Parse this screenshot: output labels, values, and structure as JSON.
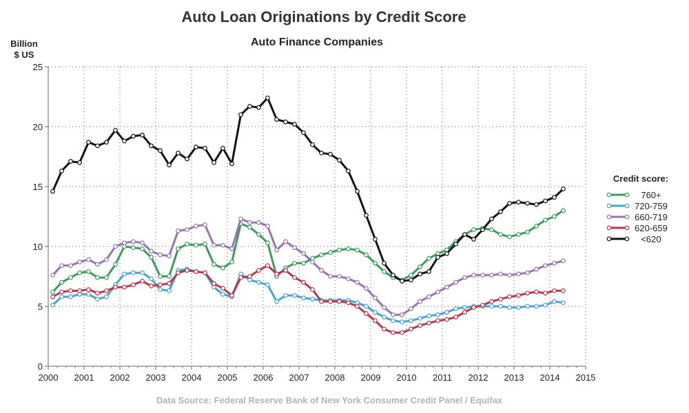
{
  "chart_data": {
    "type": "line",
    "title": "Auto Loan Originations by Credit Score",
    "subtitle": "Auto Finance Companies",
    "ylabel_line1": "Billion",
    "ylabel_line2": "$ US",
    "source": "Data Source: Federal Reserve Bank of New York Consumer Credit Panel / Equifax",
    "xlim": [
      2000,
      2015
    ],
    "ylim": [
      0,
      25
    ],
    "x_ticks": [
      "2000",
      "2001",
      "2002",
      "2003",
      "2004",
      "2005",
      "2006",
      "2007",
      "2008",
      "2009",
      "2010",
      "2011",
      "2012",
      "2013",
      "2014",
      "2015"
    ],
    "x_tick_values": [
      2000,
      2001,
      2002,
      2003,
      2004,
      2005,
      2006,
      2007,
      2008,
      2009,
      2010,
      2011,
      2012,
      2013,
      2014,
      2015
    ],
    "y_ticks": [
      "0",
      "5",
      "10",
      "15",
      "20",
      "25"
    ],
    "y_tick_values": [
      0,
      5,
      10,
      15,
      20,
      25
    ],
    "grid": true,
    "legend_title": "Credit score:",
    "legend_position": "right",
    "x": [
      2000.125,
      2000.375,
      2000.625,
      2000.875,
      2001.125,
      2001.375,
      2001.625,
      2001.875,
      2002.125,
      2002.375,
      2002.625,
      2002.875,
      2003.125,
      2003.375,
      2003.625,
      2003.875,
      2004.125,
      2004.375,
      2004.625,
      2004.875,
      2005.125,
      2005.375,
      2005.625,
      2005.875,
      2006.125,
      2006.375,
      2006.625,
      2006.875,
      2007.125,
      2007.375,
      2007.625,
      2007.875,
      2008.125,
      2008.375,
      2008.625,
      2008.875,
      2009.125,
      2009.375,
      2009.625,
      2009.875,
      2010.125,
      2010.375,
      2010.625,
      2010.875,
      2011.125,
      2011.375,
      2011.625,
      2011.875,
      2012.125,
      2012.375,
      2012.625,
      2012.875,
      2013.125,
      2013.375,
      2013.625,
      2013.875,
      2014.125,
      2014.375
    ],
    "series": [
      {
        "name": "760+",
        "color": "#3d9a5e",
        "values": [
          6.2,
          7.0,
          7.4,
          7.8,
          7.9,
          7.4,
          7.4,
          8.5,
          10.0,
          9.9,
          9.8,
          9.1,
          7.5,
          7.5,
          9.8,
          10.2,
          10.1,
          10.2,
          8.5,
          8.2,
          8.7,
          11.9,
          11.6,
          11.0,
          10.3,
          7.5,
          8.2,
          8.6,
          8.6,
          9.0,
          9.3,
          9.5,
          9.7,
          9.8,
          9.7,
          9.3,
          8.6,
          7.9,
          7.4,
          7.2,
          7.6,
          8.3,
          9.0,
          9.4,
          9.7,
          10.4,
          11.0,
          11.4,
          11.5,
          11.4,
          11.0,
          10.8,
          11.0,
          11.2,
          11.7,
          12.2,
          12.5,
          13.0
        ]
      },
      {
        "name": "720-759",
        "color": "#4aa3cc",
        "values": [
          5.1,
          5.8,
          5.8,
          6.0,
          6.0,
          5.6,
          5.8,
          6.8,
          7.7,
          7.8,
          7.8,
          7.3,
          6.4,
          6.3,
          8.0,
          8.1,
          7.9,
          7.8,
          6.6,
          6.0,
          5.8,
          7.7,
          7.2,
          7.0,
          6.8,
          5.4,
          5.9,
          5.9,
          5.7,
          5.6,
          5.5,
          5.5,
          5.5,
          5.5,
          5.3,
          5.0,
          4.5,
          4.1,
          3.8,
          3.7,
          3.8,
          4.0,
          4.2,
          4.3,
          4.5,
          4.8,
          4.9,
          5.0,
          5.0,
          5.0,
          5.0,
          4.9,
          4.9,
          5.0,
          5.0,
          5.1,
          5.4,
          5.3
        ]
      },
      {
        "name": "660-719",
        "color": "#9575b0",
        "values": [
          7.6,
          8.4,
          8.4,
          8.7,
          8.9,
          8.5,
          8.9,
          10.0,
          10.3,
          10.4,
          10.3,
          9.6,
          9.3,
          9.2,
          11.3,
          11.4,
          11.7,
          11.8,
          10.1,
          10.1,
          9.8,
          12.3,
          12.0,
          12.0,
          11.7,
          9.7,
          10.4,
          9.9,
          9.4,
          8.7,
          8.0,
          7.5,
          7.5,
          7.3,
          7.0,
          6.5,
          5.7,
          4.9,
          4.3,
          4.3,
          4.8,
          5.4,
          5.8,
          6.2,
          6.6,
          7.0,
          7.4,
          7.6,
          7.6,
          7.6,
          7.7,
          7.6,
          7.7,
          7.8,
          8.1,
          8.4,
          8.6,
          8.8
        ]
      },
      {
        "name": "620-659",
        "color": "#b03a4f",
        "values": [
          5.8,
          6.2,
          6.3,
          6.3,
          6.4,
          6.1,
          6.3,
          6.6,
          6.6,
          6.8,
          7.1,
          6.7,
          6.8,
          6.9,
          7.8,
          8.0,
          7.9,
          7.8,
          6.9,
          6.5,
          5.9,
          7.4,
          7.5,
          8.0,
          8.4,
          7.7,
          8.0,
          7.4,
          7.0,
          6.4,
          5.4,
          5.4,
          5.4,
          5.3,
          5.0,
          4.4,
          3.8,
          3.1,
          2.8,
          2.8,
          3.1,
          3.4,
          3.6,
          3.8,
          3.9,
          4.1,
          4.5,
          4.9,
          5.1,
          5.4,
          5.6,
          5.8,
          5.9,
          6.1,
          6.2,
          6.1,
          6.3,
          6.3
        ]
      },
      {
        "name": "<620",
        "color": "#111111",
        "values": [
          14.6,
          16.3,
          17.1,
          17.0,
          18.7,
          18.4,
          18.7,
          19.7,
          18.8,
          19.2,
          19.3,
          18.4,
          18.0,
          16.8,
          17.8,
          17.3,
          18.3,
          18.2,
          17.0,
          18.2,
          16.9,
          21.0,
          21.7,
          21.6,
          22.4,
          20.6,
          20.4,
          20.2,
          19.5,
          18.5,
          17.8,
          17.7,
          17.2,
          16.3,
          14.6,
          12.6,
          10.6,
          8.6,
          7.6,
          7.1,
          7.2,
          7.7,
          7.9,
          9.1,
          9.4,
          10.2,
          11.0,
          10.6,
          11.4,
          12.3,
          12.9,
          13.6,
          13.7,
          13.6,
          13.5,
          13.8,
          14.1,
          14.8
        ]
      }
    ]
  }
}
